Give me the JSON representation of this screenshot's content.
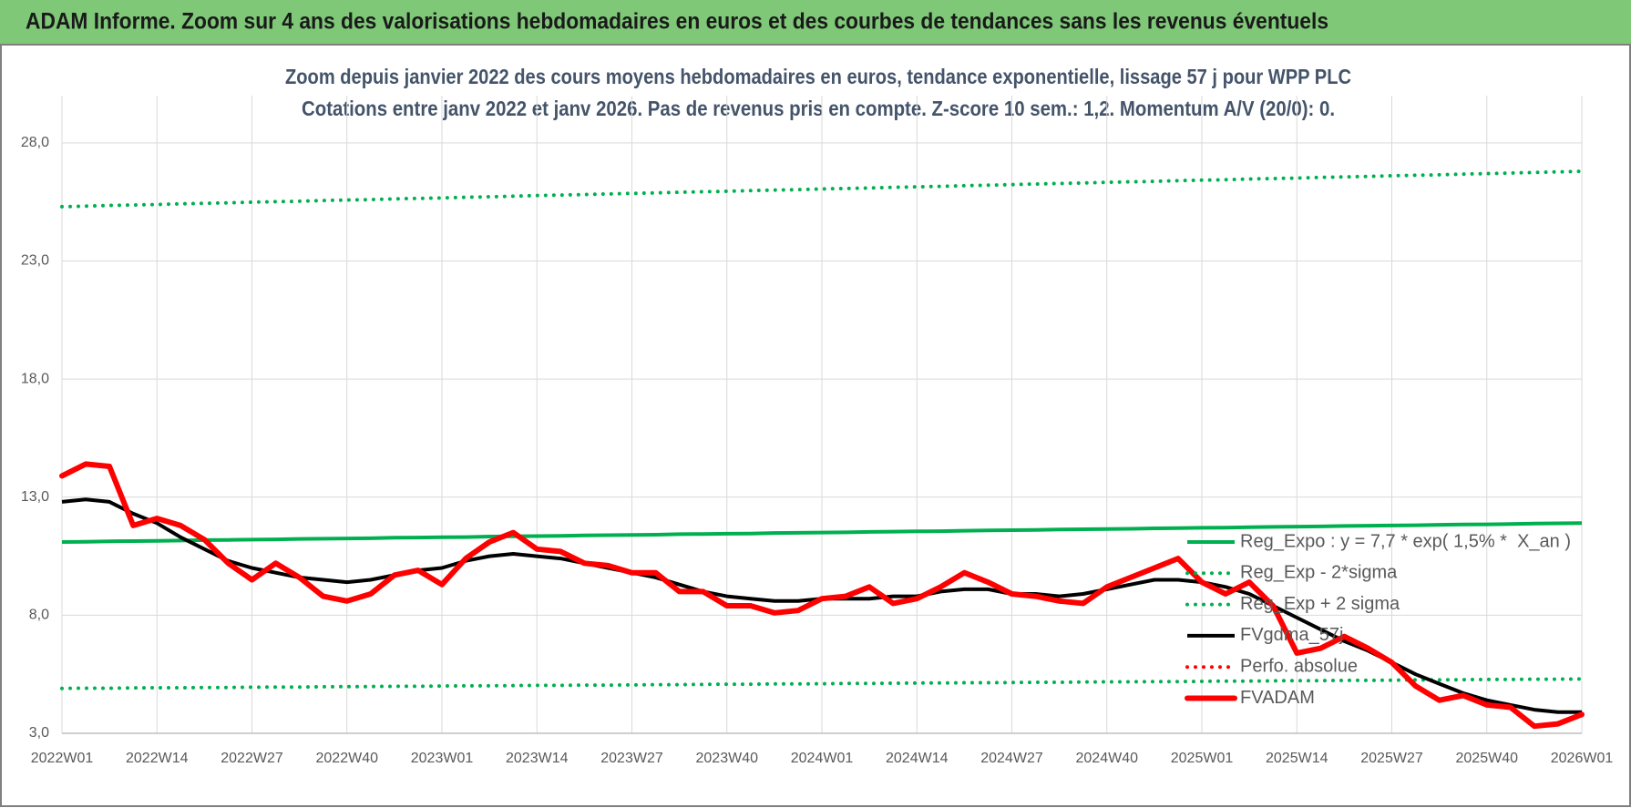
{
  "header": {
    "title": "ADAM Informe. Zoom sur 4 ans des valorisations hebdomadaires en euros et des courbes de tendances sans les revenus éventuels"
  },
  "chart_data": {
    "type": "line",
    "title": "Zoom depuis janvier 2022 des cours moyens hebdomadaires en euros, tendance exponentielle, lissage 57 j pour WPP PLC",
    "subtitle": "Cotations entre janv 2022 et janv 2026. Pas de revenus pris en compte. Z-score 10 sem.: 1,2. Momentum A/V (20/0): 0.",
    "categories": [
      "2022W01",
      null,
      null,
      null,
      "2022W14",
      null,
      null,
      null,
      "2022W27",
      null,
      null,
      null,
      "2022W40",
      null,
      null,
      null,
      "2023W01",
      null,
      null,
      null,
      "2023W14",
      null,
      null,
      null,
      "2023W27",
      null,
      null,
      null,
      "2023W40",
      null,
      null,
      null,
      "2024W01",
      null,
      null,
      null,
      "2024W14",
      null,
      null,
      null,
      "2024W27",
      null,
      null,
      null,
      "2024W40",
      null,
      null,
      null,
      "2025W01",
      null,
      null,
      null,
      "2025W14",
      null,
      null,
      null,
      "2025W27",
      null,
      null,
      null,
      "2025W40",
      null,
      null,
      null,
      "2026W01"
    ],
    "ylim": [
      3,
      30
    ],
    "yticks": [
      {
        "value": 3,
        "label": "3,0"
      },
      {
        "value": 8,
        "label": "8,0"
      },
      {
        "value": 13,
        "label": "13,0"
      },
      {
        "value": 18,
        "label": "18,0"
      },
      {
        "value": 23,
        "label": "23,0"
      },
      {
        "value": 28,
        "label": "28,0"
      }
    ],
    "grid": true,
    "legend": "right",
    "series": [
      {
        "name": "Reg_Expo : y = 7,7 * exp( 1,5% *  X_an )",
        "color": "#00b050",
        "style": "solid",
        "values": [
          11.1,
          11.11,
          11.13,
          11.14,
          11.15,
          11.16,
          11.18,
          11.19,
          11.2,
          11.21,
          11.23,
          11.24,
          11.25,
          11.26,
          11.28,
          11.29,
          11.3,
          11.31,
          11.33,
          11.34,
          11.35,
          11.36,
          11.38,
          11.39,
          11.4,
          11.41,
          11.43,
          11.44,
          11.45,
          11.46,
          11.48,
          11.49,
          11.5,
          11.51,
          11.53,
          11.54,
          11.55,
          11.56,
          11.58,
          11.59,
          11.6,
          11.61,
          11.63,
          11.64,
          11.65,
          11.66,
          11.68,
          11.69,
          11.7,
          11.71,
          11.73,
          11.74,
          11.75,
          11.76,
          11.78,
          11.79,
          11.8,
          11.81,
          11.83,
          11.84,
          11.85,
          11.86,
          11.88,
          11.89,
          11.9
        ]
      },
      {
        "name": "Reg_Exp - 2*sigma",
        "color": "#00b050",
        "style": "dotted",
        "values": [
          4.9,
          4.91,
          4.91,
          4.92,
          4.93,
          4.93,
          4.94,
          4.94,
          4.95,
          4.96,
          4.96,
          4.97,
          4.98,
          4.98,
          4.99,
          4.99,
          5.0,
          5.01,
          5.01,
          5.02,
          5.03,
          5.03,
          5.04,
          5.04,
          5.05,
          5.06,
          5.06,
          5.07,
          5.08,
          5.08,
          5.09,
          5.09,
          5.1,
          5.11,
          5.11,
          5.12,
          5.13,
          5.13,
          5.14,
          5.14,
          5.15,
          5.16,
          5.16,
          5.17,
          5.18,
          5.18,
          5.19,
          5.19,
          5.2,
          5.21,
          5.21,
          5.22,
          5.23,
          5.23,
          5.24,
          5.24,
          5.25,
          5.26,
          5.26,
          5.27,
          5.28,
          5.28,
          5.29,
          5.29,
          5.3
        ]
      },
      {
        "name": "Reg_Exp + 2 sigma",
        "color": "#00b050",
        "style": "dotted",
        "values": [
          25.3,
          25.32,
          25.35,
          25.37,
          25.39,
          25.42,
          25.44,
          25.46,
          25.49,
          25.51,
          25.53,
          25.56,
          25.58,
          25.6,
          25.63,
          25.65,
          25.67,
          25.7,
          25.72,
          25.74,
          25.77,
          25.79,
          25.81,
          25.84,
          25.86,
          25.88,
          25.91,
          25.93,
          25.95,
          25.98,
          26.0,
          26.02,
          26.05,
          26.07,
          26.09,
          26.12,
          26.14,
          26.16,
          26.19,
          26.21,
          26.23,
          26.26,
          26.28,
          26.3,
          26.33,
          26.35,
          26.37,
          26.4,
          26.42,
          26.44,
          26.47,
          26.49,
          26.51,
          26.54,
          26.56,
          26.58,
          26.61,
          26.63,
          26.65,
          26.68,
          26.7,
          26.72,
          26.75,
          26.77,
          26.8
        ]
      },
      {
        "name": "FVgdma_57j",
        "color": "#000000",
        "style": "solid",
        "values": [
          12.8,
          12.9,
          12.8,
          12.3,
          11.9,
          11.3,
          10.8,
          10.3,
          10.0,
          9.8,
          9.6,
          9.5,
          9.4,
          9.5,
          9.7,
          9.9,
          10.0,
          10.3,
          10.5,
          10.6,
          10.5,
          10.4,
          10.2,
          10.0,
          9.8,
          9.6,
          9.3,
          9.0,
          8.8,
          8.7,
          8.6,
          8.6,
          8.7,
          8.7,
          8.7,
          8.8,
          8.8,
          9.0,
          9.1,
          9.1,
          8.9,
          8.9,
          8.8,
          8.9,
          9.1,
          9.3,
          9.5,
          9.5,
          9.4,
          9.2,
          8.9,
          8.4,
          7.9,
          7.4,
          6.9,
          6.5,
          6.0,
          5.5,
          5.1,
          4.7,
          4.4,
          4.2,
          4.0,
          3.9,
          3.9
        ]
      },
      {
        "name": "Perfo. absolue",
        "color": "#ff0000",
        "style": "dotted",
        "values": [
          null,
          null,
          null,
          null,
          null,
          null,
          null,
          null,
          null,
          null,
          null,
          null,
          null,
          null,
          null,
          null,
          null,
          null,
          null,
          null,
          null,
          null,
          null,
          null,
          null,
          null,
          null,
          null,
          null,
          null,
          null,
          null,
          null,
          null,
          null,
          null,
          null,
          null,
          null,
          null,
          null,
          null,
          null,
          null,
          null,
          null,
          null,
          null,
          null,
          null,
          null,
          null,
          null,
          null,
          null,
          null,
          null,
          null,
          null,
          null,
          null,
          null,
          null,
          null,
          null
        ]
      },
      {
        "name": "FVADAM",
        "color": "#ff0000",
        "style": "bold",
        "values": [
          13.9,
          14.4,
          14.3,
          11.8,
          12.1,
          11.8,
          11.2,
          10.2,
          9.5,
          10.2,
          9.6,
          8.8,
          8.6,
          8.9,
          9.7,
          9.9,
          9.3,
          10.4,
          11.1,
          11.5,
          10.8,
          10.7,
          10.2,
          10.1,
          9.8,
          9.8,
          9.0,
          9.0,
          8.4,
          8.4,
          8.1,
          8.2,
          8.7,
          8.8,
          9.2,
          8.5,
          8.7,
          9.2,
          9.8,
          9.4,
          8.9,
          8.8,
          8.6,
          8.5,
          9.2,
          9.6,
          10.0,
          10.4,
          9.4,
          8.9,
          9.4,
          8.4,
          6.4,
          6.6,
          7.1,
          6.6,
          6.0,
          5.0,
          4.4,
          4.6,
          4.2,
          4.1,
          3.3,
          3.4,
          3.8
        ]
      }
    ]
  }
}
